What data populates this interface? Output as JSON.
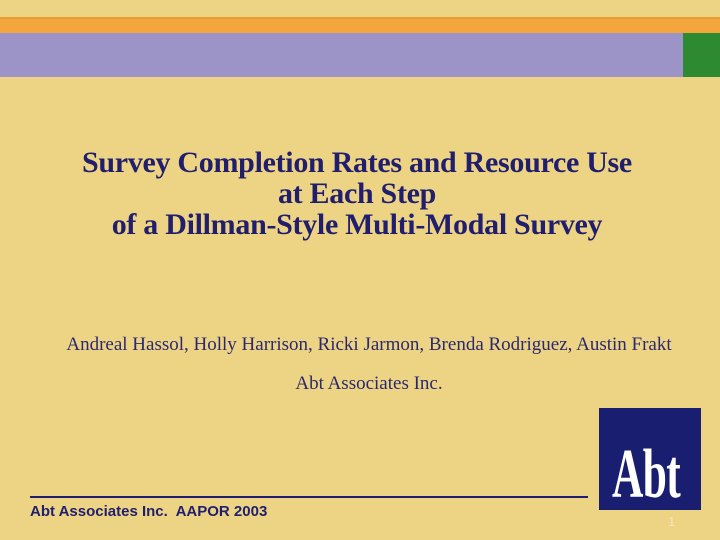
{
  "slide": {
    "title": {
      "line1": "Survey Completion Rates and Resource Use",
      "line2": "at Each Step",
      "line3": "of a Dillman-Style Multi-Modal Survey"
    },
    "authors": {
      "names": "Andreal Hassol, Holly Harrison, Ricki Jarmon, Brenda Rodriguez, Austin Frakt",
      "affiliation": "Abt Associates Inc."
    },
    "footer": {
      "text": "Abt Associates Inc.  AAPOR 2003",
      "page_number": "1"
    },
    "logo": {
      "text": "Abt"
    },
    "colors": {
      "background": "#ecd484",
      "accent_orange": "#f4a63e",
      "accent_lavender": "#9c94c6",
      "accent_green": "#2e8a31",
      "title_navy": "#211e6e",
      "logo_navy": "#191e70"
    }
  }
}
